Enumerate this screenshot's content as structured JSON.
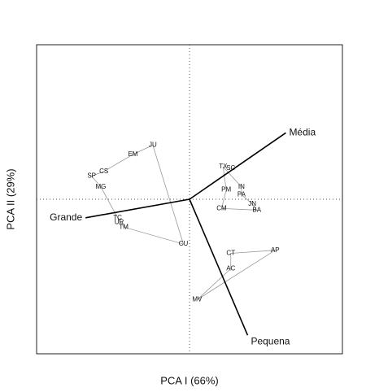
{
  "chart_data": {
    "type": "scatter",
    "xlabel": "PCA I (66%)",
    "ylabel": "PCA II (29%)",
    "xlim": [
      -1,
      1
    ],
    "ylim": [
      -1,
      1
    ],
    "points": {
      "labels": [
        "JU",
        "EM",
        "CS",
        "SP",
        "MG",
        "TC",
        "UR",
        "TM",
        "CU",
        "TX",
        "SC",
        "IN",
        "PM",
        "PA",
        "JN",
        "CM",
        "BA",
        "CT",
        "AP",
        "AC",
        "MV"
      ],
      "x": [
        -0.24,
        -0.37,
        -0.56,
        -0.64,
        -0.58,
        -0.47,
        -0.46,
        -0.43,
        -0.04,
        0.22,
        0.27,
        0.34,
        0.24,
        0.34,
        0.41,
        0.21,
        0.44,
        0.27,
        0.56,
        0.27,
        0.05
      ],
      "y": [
        0.35,
        0.29,
        0.18,
        0.15,
        0.08,
        -0.12,
        -0.15,
        -0.18,
        -0.29,
        0.21,
        0.2,
        0.08,
        0.06,
        0.03,
        -0.03,
        -0.06,
        -0.07,
        -0.35,
        -0.33,
        -0.45,
        -0.65
      ]
    },
    "vectors": [
      {
        "name": "Grande",
        "x": -0.68,
        "y": -0.12
      },
      {
        "name": "Média",
        "x": 0.63,
        "y": 0.43
      },
      {
        "name": "Pequena",
        "x": 0.38,
        "y": -0.88
      }
    ]
  }
}
